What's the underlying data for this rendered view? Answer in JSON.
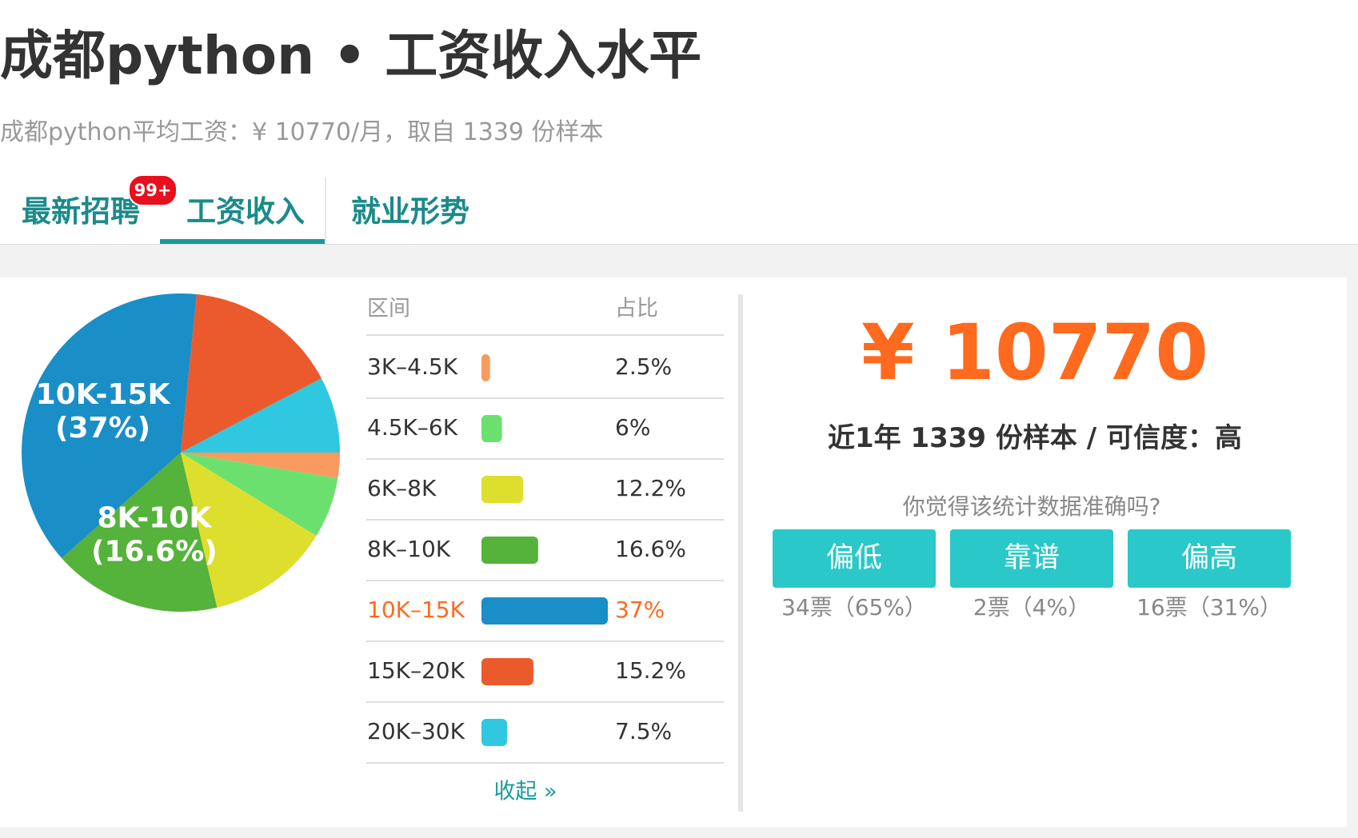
{
  "header": {
    "title": "成都python • 工资收入水平",
    "subtitle": "成都python平均工资：¥ 10770/月，取自 1339 份样本"
  },
  "tabs": {
    "items": [
      "最新招聘",
      "工资收入",
      "就业形势"
    ],
    "badge": "99+"
  },
  "chart_data": {
    "type": "pie",
    "categories": [
      "3K–4.5K",
      "4.5K–6K",
      "6K–8K",
      "8K–10K",
      "10K–15K",
      "15K–20K",
      "20K–30K"
    ],
    "values": [
      2.5,
      6,
      12.2,
      16.6,
      37,
      15.2,
      7.5
    ],
    "value_labels": [
      "2.5%",
      "6%",
      "12.2%",
      "16.6%",
      "37%",
      "15.2%",
      "7.5%"
    ],
    "colors": [
      "#f99a5e",
      "#6be06f",
      "#dede2e",
      "#55b23a",
      "#1a8ec6",
      "#eb5a2c",
      "#30c8e0"
    ],
    "pie_labels": [
      null,
      null,
      null,
      [
        "8K-10K",
        "(16.6%)"
      ],
      [
        "10K-15K",
        "(37%)"
      ],
      null,
      null
    ],
    "table_headers": [
      "区间",
      "占比"
    ],
    "highlight": 4,
    "collapse_link": "收起 »"
  },
  "summary": {
    "average": "¥ 10770",
    "sample": "近1年 1339 份样本 / 可信度：高",
    "question": "你觉得该统计数据准确吗?",
    "votes": [
      {
        "button": "偏低",
        "result": "34票（65%）"
      },
      {
        "button": "靠谱",
        "result": "2票（4%）"
      },
      {
        "button": "偏高",
        "result": "16票（31%）"
      }
    ]
  }
}
